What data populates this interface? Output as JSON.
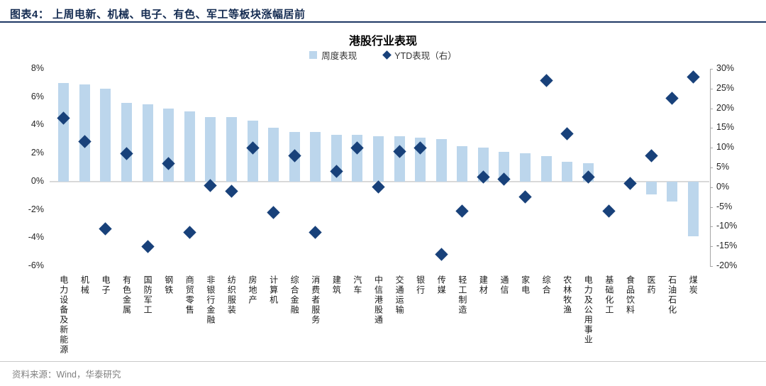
{
  "header": {
    "title": "图表4：  上周电新、机械、电子、有色、军工等板块涨幅居前"
  },
  "chart": {
    "title": "港股行业表现",
    "legend": [
      {
        "label": "周度表现",
        "marker": "square-icon",
        "color": "#bcd6ec"
      },
      {
        "label": "YTD表现（右）",
        "marker": "diamond-icon",
        "color": "#18417a"
      }
    ]
  },
  "chart_data": {
    "type": "combo (bar + diamond scatter, dual axis)",
    "title": "港股行业表现",
    "categories": [
      "电力设备及新能源",
      "机械",
      "电子",
      "有色金属",
      "国防军工",
      "钢铁",
      "商贸零售",
      "非银行金融",
      "纺织服装",
      "房地产",
      "计算机",
      "综合金融",
      "消费者服务",
      "建筑",
      "汽车",
      "中信港股通",
      "交通运输",
      "银行",
      "传媒",
      "轻工制造",
      "建材",
      "通信",
      "家电",
      "综合",
      "农林牧渔",
      "电力及公用事业",
      "基础化工",
      "食品饮料",
      "医药",
      "石油石化",
      "煤炭"
    ],
    "series": [
      {
        "name": "周度表现",
        "type": "bar",
        "axis": "left",
        "values": [
          7.0,
          6.9,
          6.6,
          5.6,
          5.5,
          5.2,
          5.0,
          4.6,
          4.6,
          4.3,
          3.8,
          3.5,
          3.5,
          3.3,
          3.3,
          3.2,
          3.2,
          3.1,
          3.0,
          2.5,
          2.4,
          2.1,
          2.0,
          1.8,
          1.4,
          1.3,
          0.0,
          0.0,
          -0.9,
          -1.4,
          -3.9
        ]
      },
      {
        "name": "YTD表现（右）",
        "type": "scatter",
        "axis": "right",
        "values": [
          17.5,
          11.5,
          -10.5,
          8.5,
          -15.0,
          6.0,
          -11.5,
          0.5,
          -1.0,
          10.0,
          -6.5,
          8.0,
          -11.5,
          4.0,
          10.0,
          0.0,
          9.0,
          10.0,
          -17.0,
          -6.0,
          2.5,
          2.0,
          -2.5,
          27.0,
          13.5,
          2.5,
          -6.0,
          1.0,
          8.0,
          22.5,
          28.0
        ]
      }
    ],
    "left_axis": {
      "range": [
        -6,
        8
      ],
      "tick_values": [
        8,
        6,
        4,
        2,
        0,
        -2,
        -4,
        -6
      ],
      "tick_labels": [
        "8%",
        "6%",
        "4%",
        "2%",
        "0%",
        "-2%",
        "-4%",
        "-6%"
      ]
    },
    "right_axis": {
      "range": [
        -20,
        30
      ],
      "tick_values": [
        30,
        25,
        20,
        15,
        10,
        5,
        0,
        -5,
        -10,
        -15,
        -20
      ],
      "tick_labels": [
        "30%",
        "25%",
        "20%",
        "15%",
        "10%",
        "5%",
        "0%",
        "-5%",
        "-10%",
        "-15%",
        "-20%"
      ]
    },
    "grid": "off (zero line only)",
    "legend_position": "top-center"
  },
  "colors": {
    "bar": "#bcd6ec",
    "diamond": "#18417a",
    "header_text": "#152c52",
    "header_rule": "#1f3864",
    "zero_line": "#d9d9d9",
    "axis_text": "#262626",
    "footer_text": "#808080"
  },
  "footer": {
    "source": "资料来源：Wind，华泰研究"
  }
}
